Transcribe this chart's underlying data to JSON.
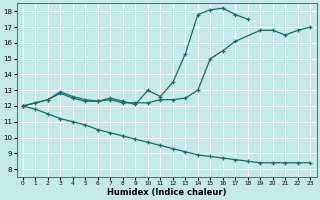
{
  "title": "",
  "xlabel": "Humidex (Indice chaleur)",
  "background_color": "#c5e8e8",
  "line_color": "#1a6b6b",
  "xlim": [
    -0.5,
    23.5
  ],
  "ylim": [
    7.5,
    18.5
  ],
  "yticks": [
    8,
    9,
    10,
    11,
    12,
    13,
    14,
    15,
    16,
    17,
    18
  ],
  "xticks": [
    0,
    1,
    2,
    3,
    4,
    5,
    6,
    7,
    8,
    9,
    10,
    11,
    12,
    13,
    14,
    15,
    16,
    17,
    18,
    19,
    20,
    21,
    22,
    23
  ],
  "line1_x": [
    0,
    1,
    2,
    3,
    4,
    5,
    6,
    7,
    8,
    9,
    10,
    11,
    12,
    13,
    14,
    15,
    16,
    17,
    18,
    19,
    20,
    21,
    22,
    23
  ],
  "line1_y": [
    12.0,
    12.2,
    12.4,
    12.9,
    12.6,
    12.4,
    12.3,
    12.5,
    12.3,
    12.1,
    13.0,
    12.6,
    13.5,
    15.3,
    17.8,
    18.1,
    18.2,
    17.8,
    17.5,
    null,
    null,
    null,
    null,
    null
  ],
  "line2_x": [
    0,
    2,
    3,
    4,
    5,
    6,
    7,
    8,
    9,
    10,
    11,
    12,
    13,
    14,
    15,
    16,
    17,
    19,
    20,
    21,
    22,
    23
  ],
  "line2_y": [
    12.0,
    12.4,
    12.8,
    12.5,
    12.3,
    12.3,
    12.4,
    12.2,
    12.2,
    12.2,
    12.4,
    12.4,
    12.5,
    13.0,
    15.0,
    15.5,
    16.1,
    16.8,
    16.8,
    16.5,
    16.8,
    17.0
  ],
  "line3_x": [
    0,
    1,
    2,
    3,
    4,
    5,
    6,
    7,
    8,
    9,
    10,
    11,
    12,
    13,
    14,
    15,
    16,
    17,
    18,
    19,
    20,
    21,
    22,
    23
  ],
  "line3_y": [
    12.0,
    11.8,
    11.5,
    11.2,
    11.0,
    10.8,
    10.5,
    10.3,
    10.1,
    9.9,
    9.7,
    9.5,
    9.3,
    9.1,
    8.9,
    8.8,
    8.7,
    8.6,
    8.5,
    8.4,
    8.4,
    8.4,
    8.4,
    8.4
  ],
  "grid_color": "#ffffff",
  "marker": "+"
}
